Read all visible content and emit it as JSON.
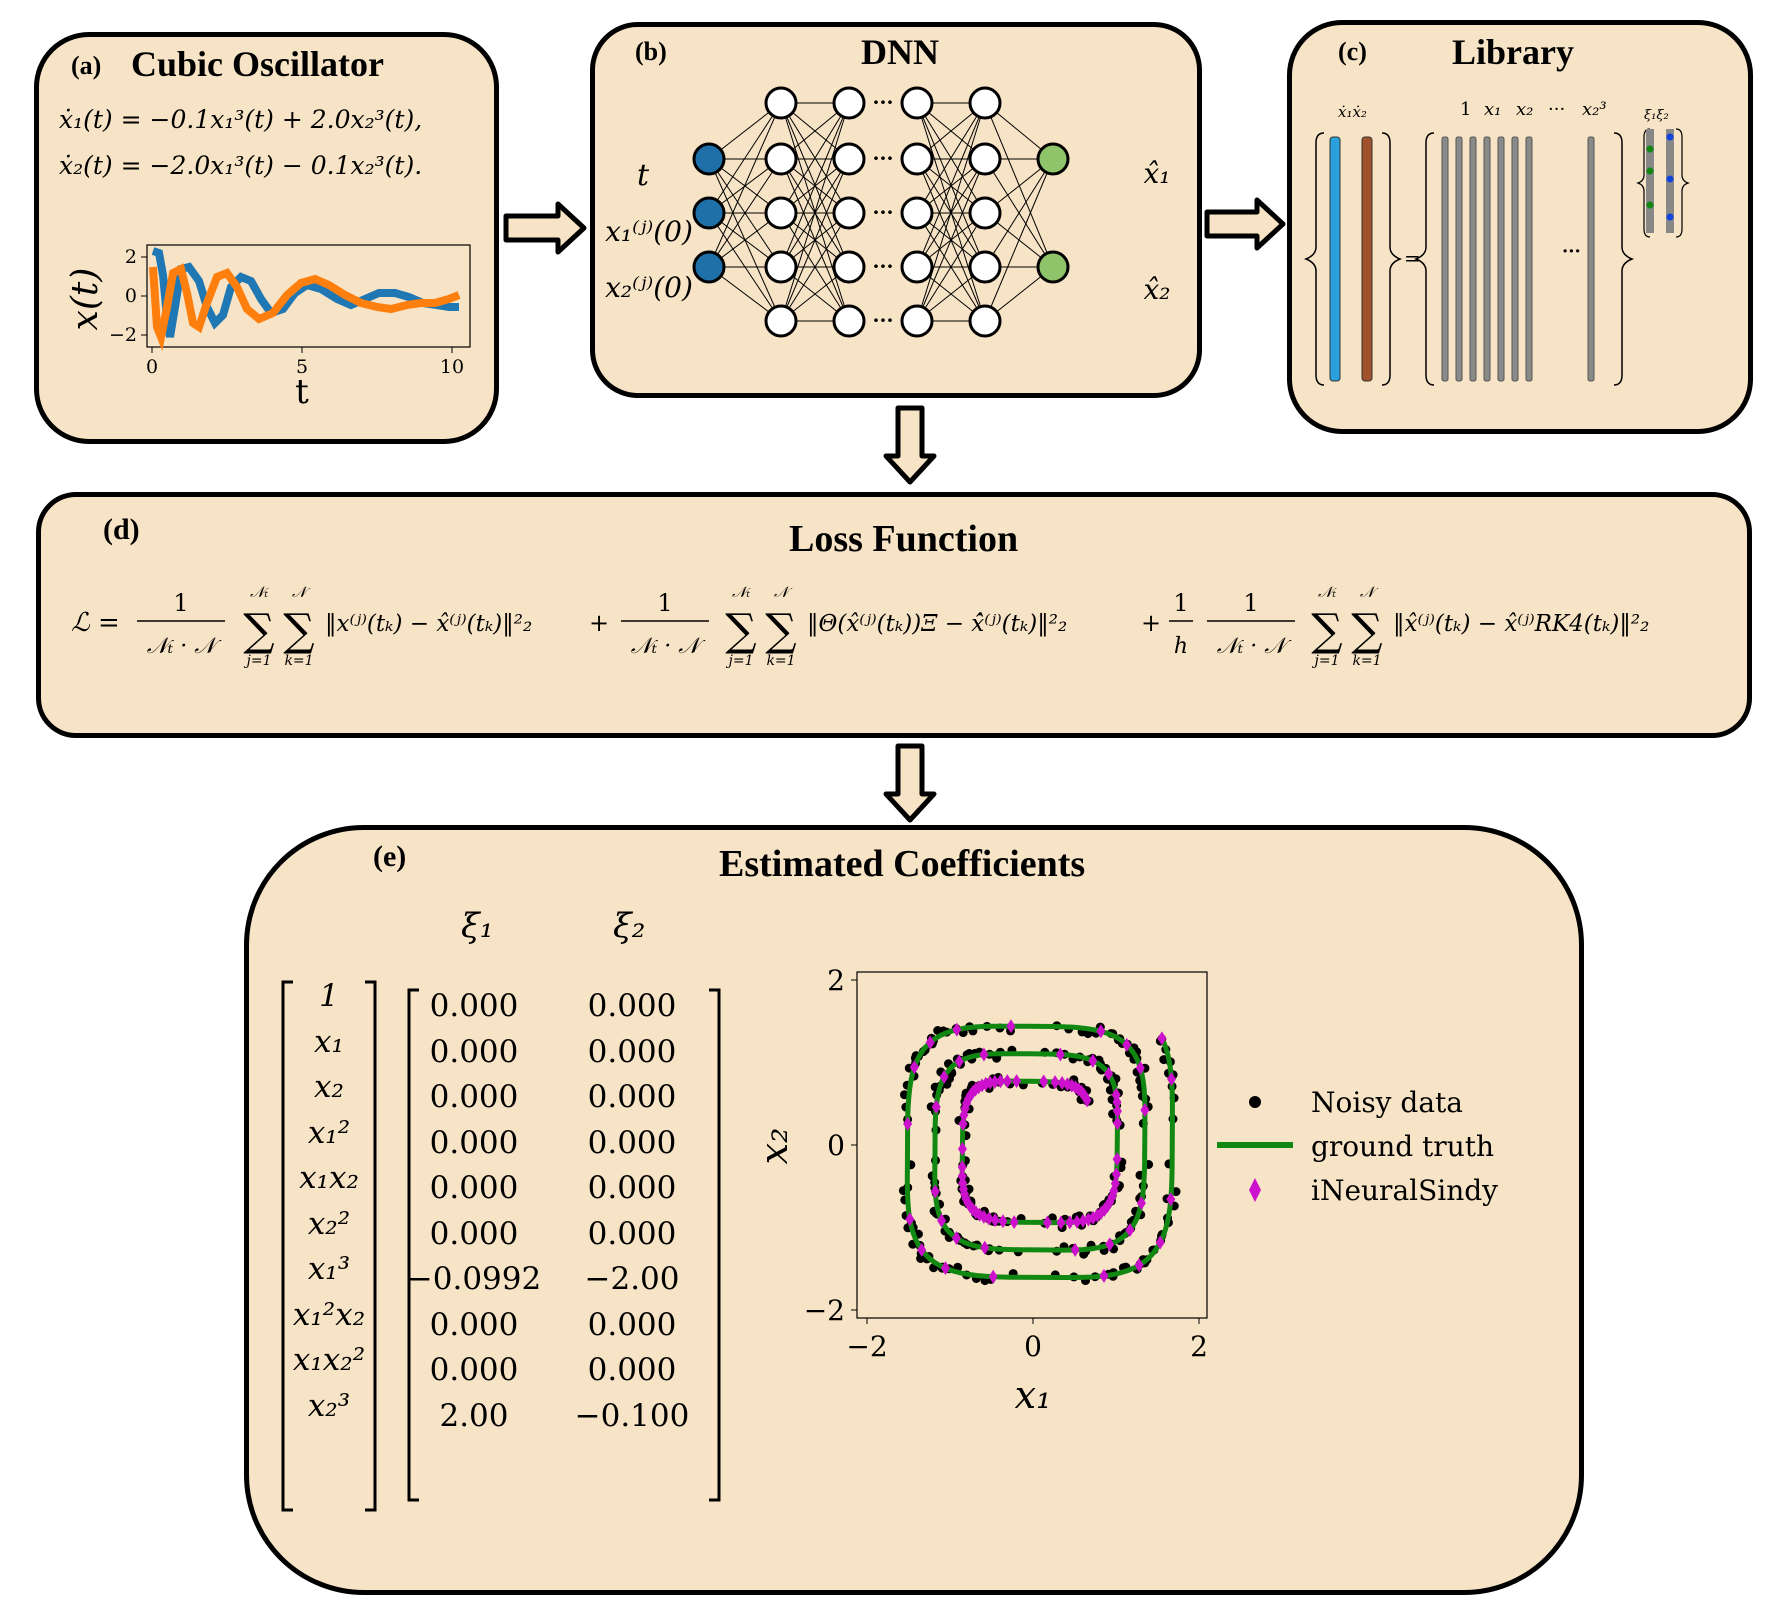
{
  "panel_a": {
    "label": "(a)",
    "title": "Cubic Oscillator",
    "eq1": "ẋ₁(t) = −0.1x₁³(t) + 2.0x₂³(t),",
    "eq2": "ẋ₂(t) = −2.0x₁³(t) − 0.1x₂³(t).",
    "ylabel": "x(t)",
    "xlabel": "t",
    "yticks": [
      "2",
      "0",
      "−2"
    ],
    "xticks": [
      "0",
      "5",
      "10"
    ]
  },
  "panel_b": {
    "label": "(b)",
    "title": "DNN",
    "input_t": "t",
    "input_x1": "x₁⁽ʲ⁾(0)",
    "input_x2": "x₂⁽ʲ⁾(0)",
    "output_x1": "x̂₁",
    "output_x2": "x̂₂",
    "ellipsis": "···"
  },
  "panel_c": {
    "label": "(c)",
    "title": "Library",
    "lhs_labels": "ẋ₁ẋ₂",
    "lib_labels": [
      "1",
      "x₁",
      "x₂",
      "···",
      "x₂³"
    ],
    "coef_labels": "ξ₁ξ₂",
    "equals": "=",
    "dots": "···"
  },
  "panel_d": {
    "label": "(d)",
    "title": "Loss Function",
    "frac_num": "1",
    "frac_den": "𝒩ₜ · 𝒩",
    "h_num": "1",
    "h_den": "h",
    "L_symbol": "ℒ =",
    "sum_top_outer": "𝒩ₜ",
    "sum_top_inner": "𝒩",
    "sum_bot_outer": "j=1",
    "sum_bot_inner": "k=1",
    "term1": "‖x⁽ʲ⁾(tₖ) − x̂⁽ʲ⁾(tₖ)‖²₂",
    "term2": "‖Θ(x̂⁽ʲ⁾(tₖ))Ξ − x̂̇⁽ʲ⁾(tₖ)‖²₂",
    "term3": "‖x̂⁽ʲ⁾(tₖ) − x̂⁽ʲ⁾RK4(tₖ)‖²₂",
    "plus": "+"
  },
  "panel_e": {
    "label": "(e)",
    "title": "Estimated Coefficients",
    "col1": "ξ₁",
    "col2": "ξ₂",
    "terms": [
      "1",
      "x₁",
      "x₂",
      "x₁²",
      "x₁x₂",
      "x₂²",
      "x₁³",
      "x₁²x₂",
      "x₁x₂²",
      "x₂³"
    ],
    "xi1": [
      "0.000",
      "0.000",
      "0.000",
      "0.000",
      "0.000",
      "0.000",
      "−0.0992",
      "0.000",
      "0.000",
      "2.00"
    ],
    "xi2": [
      "0.000",
      "0.000",
      "0.000",
      "0.000",
      "0.000",
      "0.000",
      "−2.00",
      "0.000",
      "0.000",
      "−0.100"
    ]
  },
  "phase_plot": {
    "xlabel": "x₁",
    "ylabel": "x₂",
    "xticks": [
      "−2",
      "0",
      "2"
    ],
    "yticks": [
      "2",
      "0",
      "−2"
    ],
    "legend": [
      "Noisy data",
      "ground truth",
      "iNeuralSindy"
    ]
  },
  "colors": {
    "panel_bg": "#f7e3c5",
    "input_node": "#1f6fa8",
    "output_node": "#8fc46a",
    "series_x1": "#1f77b4",
    "series_x2": "#ff7f0e",
    "ground_truth": "#118811",
    "ineuralsindy": "#cc11cc",
    "lib_x1dot": "#2aa0dd",
    "lib_x2dot": "#a0522d"
  }
}
